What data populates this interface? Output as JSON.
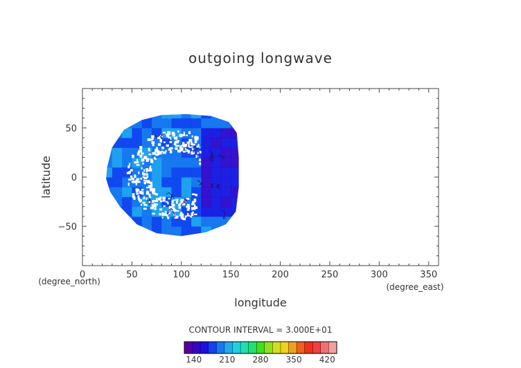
{
  "chart_data": {
    "type": "heatmap",
    "title": "outgoing longwave",
    "xlabel": "longitude",
    "ylabel": "latitude",
    "x_unit": "(degree_east)",
    "y_unit": "(degree_north)",
    "xlim": [
      0,
      360
    ],
    "ylim": [
      -90,
      90
    ],
    "x_ticks": [
      0,
      50,
      100,
      150,
      200,
      250,
      300,
      350
    ],
    "y_ticks": [
      -50,
      0,
      50
    ],
    "contour_interval": "CONTOUR INTERVAL = 3.000E+01",
    "colorbar": {
      "ticks": [
        140,
        210,
        280,
        350,
        420
      ],
      "range": [
        120,
        440
      ],
      "colors": [
        "#5a00a0",
        "#3a00c8",
        "#1c10e0",
        "#1040f0",
        "#1878f0",
        "#20a8f0",
        "#20d0e0",
        "#20e0b0",
        "#20e070",
        "#40e020",
        "#90e020",
        "#d0e020",
        "#f0d020",
        "#f0a020",
        "#f06020",
        "#f03020",
        "#f04040",
        "#f07070",
        "#f0a0a0"
      ]
    },
    "field_summary": {
      "disk_center": [
        94,
        3
      ],
      "typical_value": 195,
      "cold_cloud_region_value": 140,
      "eastern_region_value": 150
    }
  }
}
